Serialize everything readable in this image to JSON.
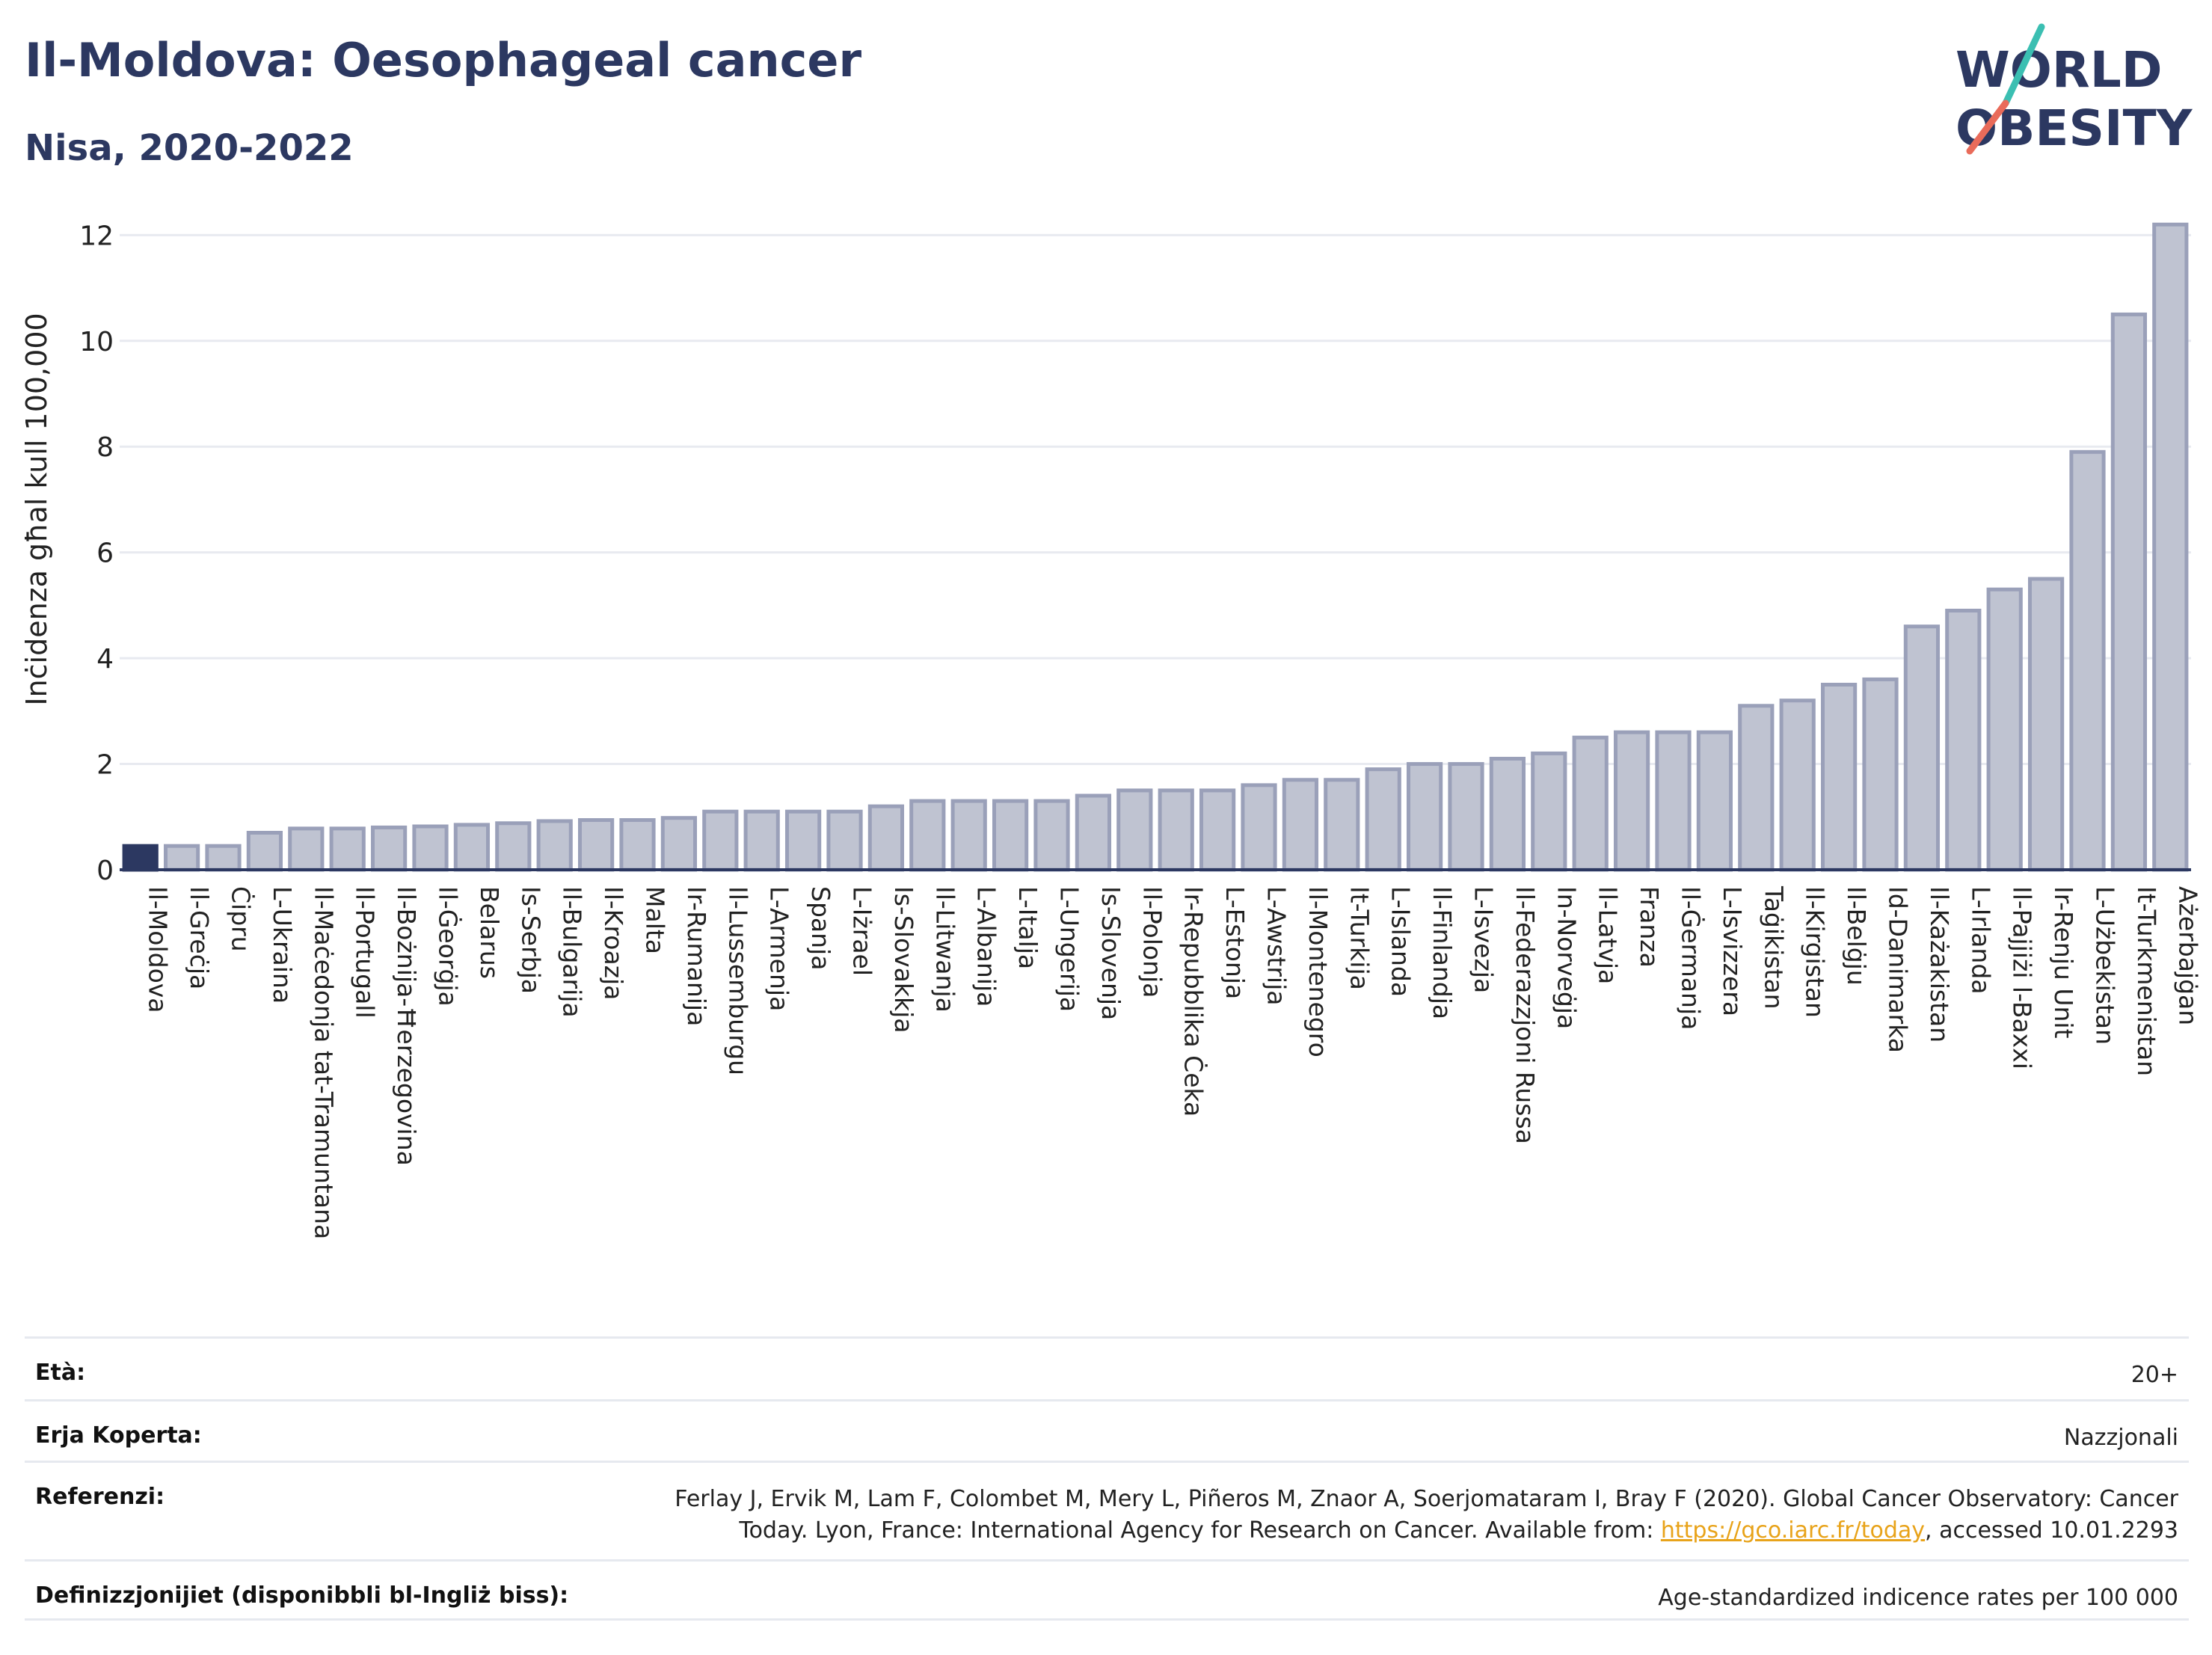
{
  "header": {
    "title": "Il-Moldova: Oesophageal cancer",
    "subtitle": "Nisa, 2020-2022"
  },
  "logo": {
    "line1": "WORLD",
    "line2": "OBESITY",
    "colors": {
      "text": "#2c3861",
      "slash_top": "#3bbfb2",
      "slash_bottom": "#e96b5a"
    }
  },
  "chart_data": {
    "type": "bar",
    "ylabel": "Inċidenza għal kull 100,000",
    "ylim": [
      0,
      12.5
    ],
    "yticks": [
      0,
      2,
      4,
      6,
      8,
      10,
      12
    ],
    "grid": true,
    "colors": {
      "highlight": "#2c3861",
      "bar": "#bfc3d1",
      "bar_stroke": "#9aa0b9"
    },
    "highlight_index": 0,
    "categories": [
      "Il-Moldova",
      "Il-Greċja",
      "Ċipru",
      "L-Ukraina",
      "Il-Maċedonja tat-Tramuntana",
      "Il-Portugall",
      "Il-Bożnija-Ħerzegovina",
      "Il-Ġeorġja",
      "Belarus",
      "Is-Serbja",
      "Il-Bulgarija",
      "Il-Kroazja",
      "Malta",
      "Ir-Rumanija",
      "Il-Lussemburgu",
      "L-Armenja",
      "Spanja",
      "L-Iżrael",
      "Is-Slovakkja",
      "Il-Litwanja",
      "L-Albanija",
      "L-Italja",
      "L-Ungerija",
      "Is-Slovenja",
      "Il-Polonja",
      "Ir-Repubblika Ċeka",
      "L-Estonja",
      "L-Awstrija",
      "Il-Montenegro",
      "It-Turkija",
      "L-Islanda",
      "Il-Finlandja",
      "L-Isvezja",
      "Il-Federazzjoni Russa",
      "In-Norveġja",
      "Il-Latvja",
      "Franza",
      "Il-Ġermanja",
      "L-Isvizzera",
      "Taġikistan",
      "Il-Kirgistan",
      "Il-Belġju",
      "Id-Danimarka",
      "Il-Każakistan",
      "L-Irlanda",
      "Il-Pajjiżi l-Baxxi",
      "Ir-Renju Unit",
      "L-Użbekistan",
      "It-Turkmenistan",
      "Ażerbajġan"
    ],
    "values": [
      0.45,
      0.45,
      0.45,
      0.7,
      0.78,
      0.78,
      0.8,
      0.82,
      0.85,
      0.88,
      0.92,
      0.94,
      0.94,
      0.98,
      1.1,
      1.1,
      1.1,
      1.1,
      1.2,
      1.3,
      1.3,
      1.3,
      1.3,
      1.4,
      1.5,
      1.5,
      1.5,
      1.6,
      1.7,
      1.7,
      1.9,
      2.0,
      2.0,
      2.1,
      2.2,
      2.5,
      2.6,
      2.6,
      2.6,
      3.1,
      3.2,
      3.5,
      3.6,
      4.6,
      4.9,
      5.3,
      5.5,
      7.9,
      10.5,
      12.2
    ]
  },
  "info": {
    "age_label": "Età:",
    "age_value": "20+",
    "coverage_label": "Erja Koperta:",
    "coverage_value": "Nazzjonali",
    "references_label": "Referenzi:",
    "references_line1": "Ferlay J, Ervik M, Lam F, Colombet M, Mery L, Piñeros M, Znaor A, Soerjomataram I, Bray F (2020). Global Cancer Observatory: Cancer",
    "references_line2_pre": "Today. Lyon, France: International Agency for Research on Cancer. Available from: ",
    "references_link": "https://gco.iarc.fr/today",
    "references_line2_post": ", accessed 10.01.2293",
    "definitions_label": "Definizzjonijiet (disponibbli bl-Ingliż biss):",
    "definitions_value": "Age-standardized indicence rates per 100 000"
  }
}
